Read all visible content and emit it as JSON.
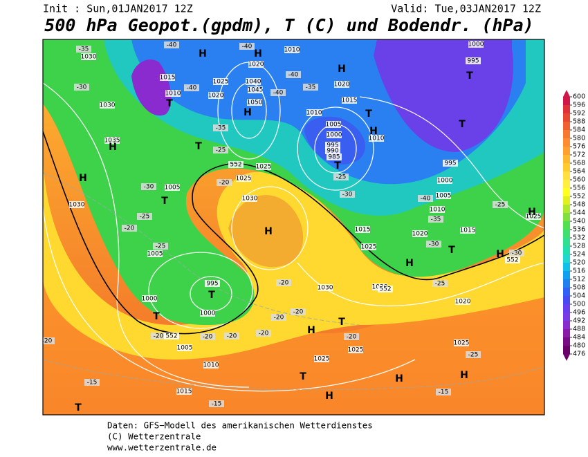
{
  "header": {
    "init": "Init : Sun,01JAN2017 12Z",
    "valid": "Valid: Tue,03JAN2017 12Z",
    "title": "500 hPa Geopot.(gpdm), T (C) und Bodendr. (hPa)"
  },
  "footer": {
    "source": "Daten: GFS−Modell des amerikanischen Wetterdienstes",
    "copyright": "(C) Wetterzentrale",
    "url": "www.wetterzentrale.de"
  },
  "colorbar": {
    "ticks": [
      600,
      596,
      592,
      588,
      584,
      580,
      576,
      572,
      568,
      564,
      560,
      556,
      552,
      548,
      544,
      540,
      536,
      532,
      528,
      524,
      520,
      516,
      512,
      508,
      504,
      500,
      496,
      492,
      488,
      484,
      480,
      476
    ],
    "colors": [
      "#6a006a",
      "#7a0a85",
      "#8c1aa8",
      "#8a2bd0",
      "#7a3ae6",
      "#6640f0",
      "#4848f5",
      "#3060f5",
      "#2080f0",
      "#10a0f0",
      "#10c0e8",
      "#20d8d0",
      "#20e0b0",
      "#30e090",
      "#40e070",
      "#50e050",
      "#80e040",
      "#b0e830",
      "#e0f020",
      "#ffff20",
      "#fff040",
      "#ffe040",
      "#ffcc30",
      "#ffb830",
      "#ffa030",
      "#ff8c30",
      "#f87830",
      "#f06030",
      "#e84830",
      "#e03038",
      "#d01848"
    ]
  },
  "map": {
    "centers": [
      "H",
      "H",
      "H",
      "H",
      "H",
      "H",
      "H",
      "H",
      "H",
      "H",
      "H",
      "H",
      "H",
      "H",
      "H",
      "T",
      "T",
      "T",
      "T",
      "T",
      "T",
      "T",
      "T",
      "T",
      "T",
      "T",
      "T",
      "T"
    ],
    "pressure_labels": [
      "1030",
      "1015",
      "1010",
      "1020",
      "1025",
      "1030",
      "1035",
      "1030",
      "1005",
      "1005",
      "995",
      "1000",
      "1000",
      "1005",
      "1010",
      "1015",
      "1050",
      "1045",
      "1040",
      "1020",
      "1025",
      "1025",
      "1030",
      "1010",
      "1020",
      "1010",
      "1015",
      "1005",
      "1000",
      "995",
      "990",
      "985",
      "1010",
      "1000",
      "1005",
      "1010",
      "1015",
      "1020",
      "1025",
      "1015",
      "1030",
      "1020",
      "1020",
      "1025",
      "1025",
      "1025",
      "995",
      "995",
      "1000",
      "1025"
    ],
    "temperature_labels": [
      "-35",
      "-30",
      "-40",
      "-40",
      "-35",
      "-25",
      "-20",
      "-30",
      "-25",
      "-20",
      "-25",
      "-40",
      "-40",
      "-40",
      "-35",
      "-25",
      "-30",
      "-40",
      "-35",
      "-25",
      "-30",
      "-30",
      "-25",
      "-20",
      "-20",
      "-20",
      "-20",
      "-20",
      "-20",
      "-20",
      "-20",
      "-15",
      "-15",
      "-15",
      "-25",
      "-20"
    ],
    "geopotential_labels": [
      "552",
      "552",
      "552",
      "552"
    ]
  }
}
